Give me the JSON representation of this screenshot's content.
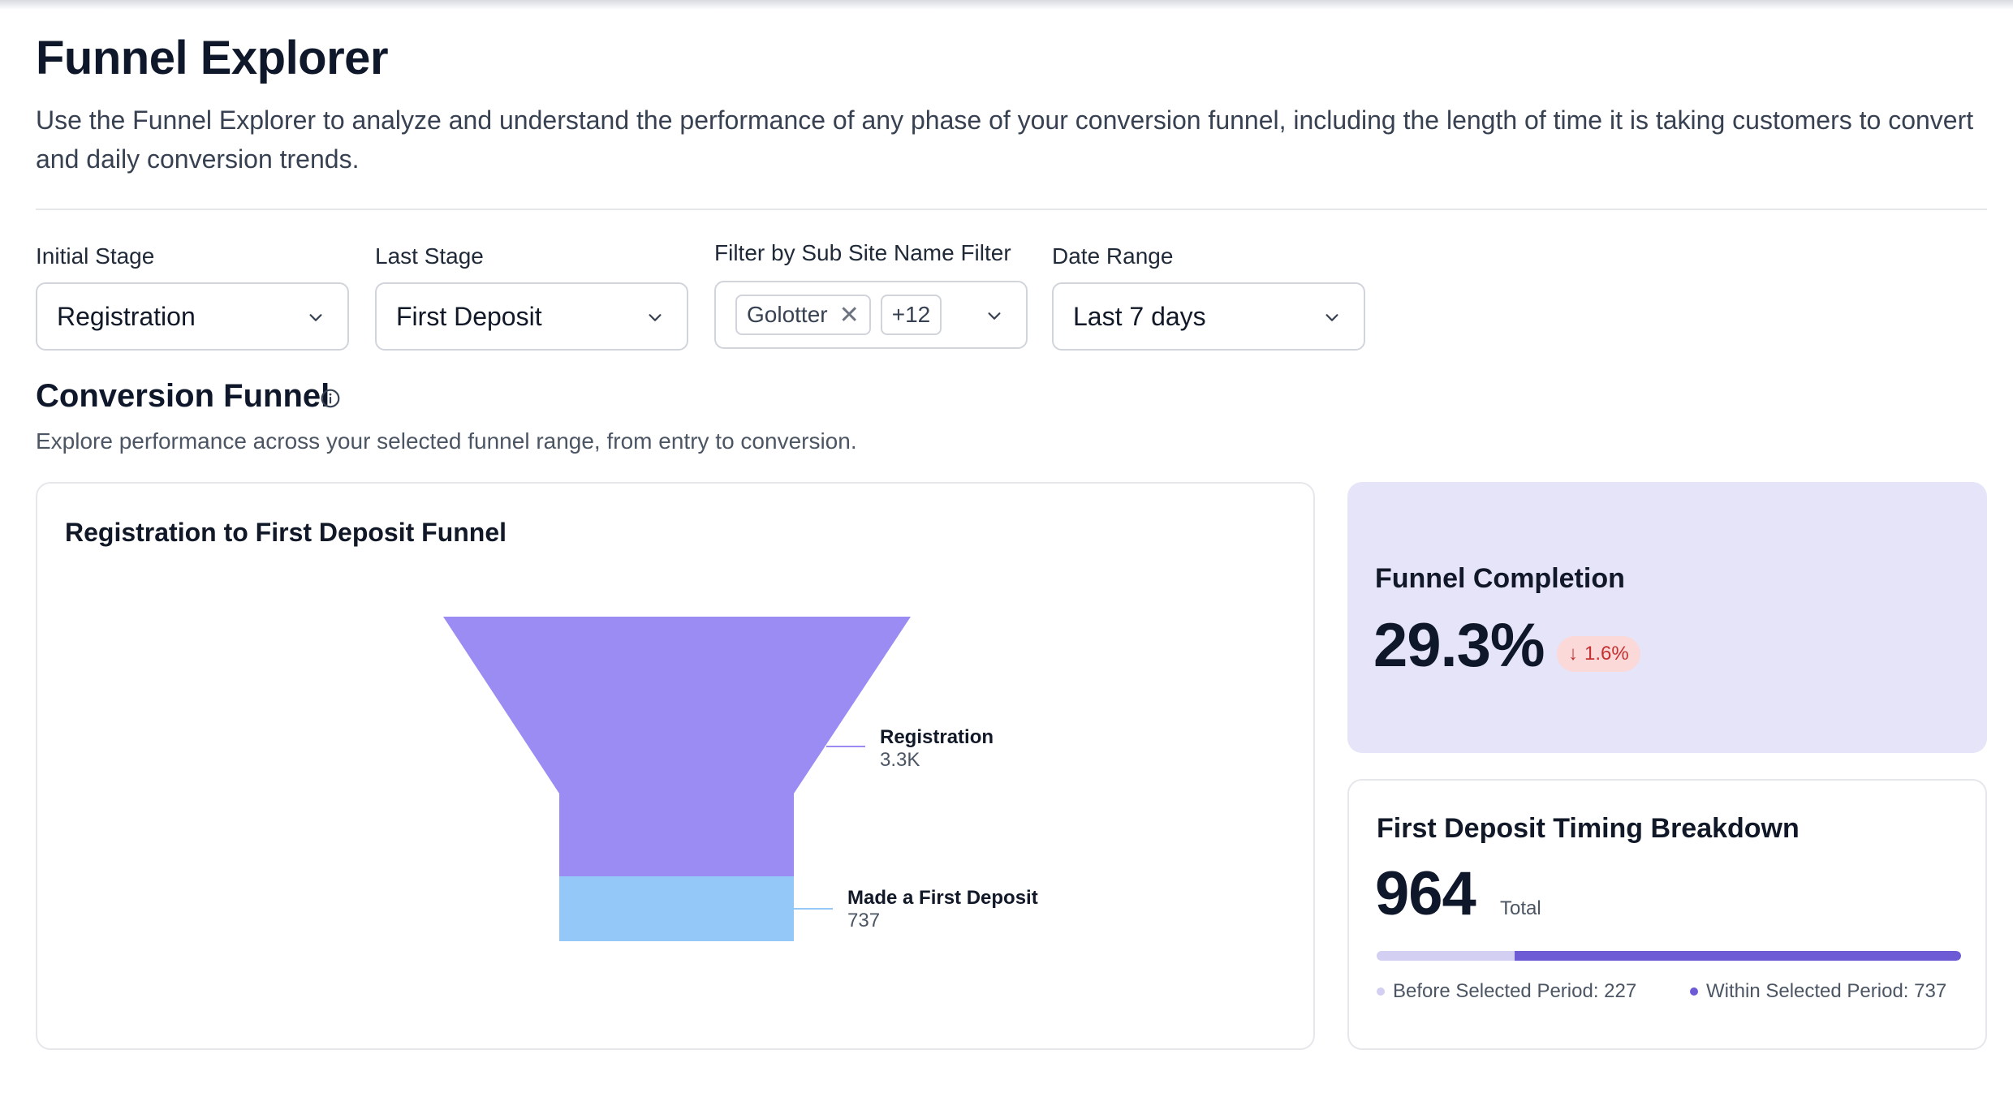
{
  "header": {
    "title": "Funnel Explorer",
    "description": "Use the Funnel Explorer to analyze and understand the performance of any phase of your conversion funnel, including the length of time it is taking customers to convert and daily conversion trends."
  },
  "filters": {
    "initial_stage": {
      "label": "Initial Stage",
      "value": "Registration"
    },
    "last_stage": {
      "label": "Last Stage",
      "value": "First Deposit"
    },
    "sub_site": {
      "label": "Filter by Sub Site Name Filter",
      "chip": "Golotter",
      "more": "+12"
    },
    "date_range": {
      "label": "Date Range",
      "value": "Last 7 days"
    }
  },
  "section": {
    "title": "Conversion Funnel",
    "description": "Explore performance across your selected funnel range, from entry to conversion."
  },
  "funnel_card": {
    "title": "Registration to First Deposit Funnel"
  },
  "chart_data": {
    "type": "funnel",
    "stages": [
      {
        "name": "Registration",
        "label": "3.3K",
        "value": 3300,
        "color": "#9a8cf2"
      },
      {
        "name": "Made a First Deposit",
        "label": "737",
        "value": 737,
        "color": "#94c8f8"
      }
    ]
  },
  "completion": {
    "title": "Funnel Completion",
    "value": "29.3%",
    "change": "1.6%",
    "change_direction": "down"
  },
  "timing": {
    "title": "First Deposit Timing Breakdown",
    "total": "964",
    "total_label": "Total",
    "before": {
      "label": "Before Selected Period: 227",
      "value": 227,
      "color": "#d2cff2"
    },
    "within": {
      "label": "Within Selected Period: 737",
      "value": 737,
      "color": "#6d5bd6"
    }
  },
  "colors": {
    "accent": "#6d5bd6",
    "kpi_bg": "#e6e4f8",
    "negative": "#c53030"
  }
}
